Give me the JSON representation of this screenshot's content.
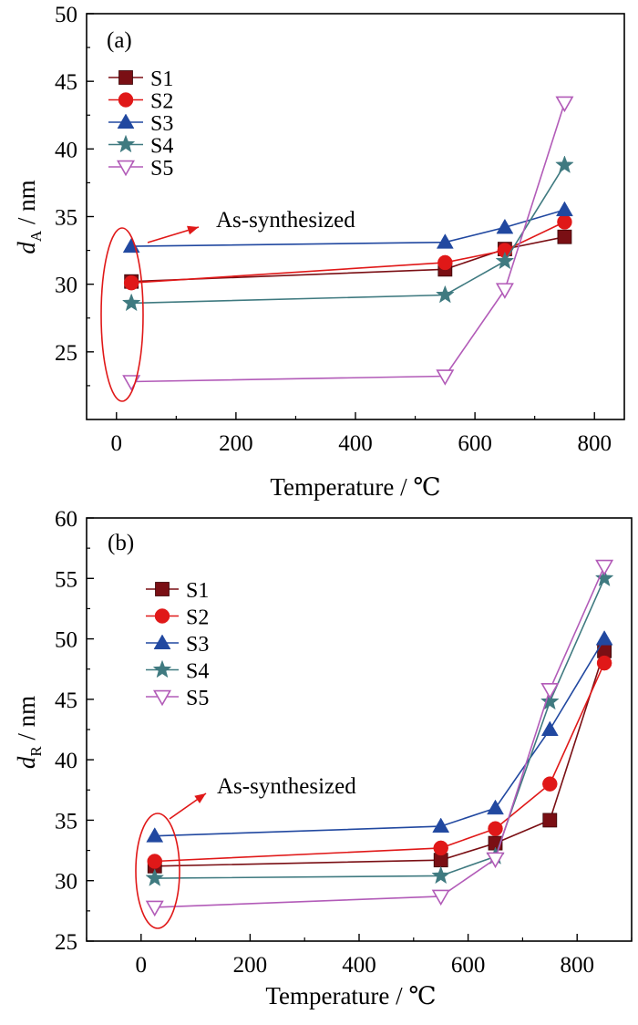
{
  "chart_data": [
    {
      "type": "line",
      "panel_label": "(a)",
      "xlabel": "Temperature / ℃",
      "ylabel_main": "d",
      "ylabel_sub": "A",
      "ylabel_unit": " / nm",
      "xlim": [
        -50,
        850
      ],
      "ylim": [
        20,
        50
      ],
      "xticks": [
        0,
        200,
        400,
        600,
        800
      ],
      "yticks": [
        25,
        30,
        35,
        40,
        45,
        50
      ],
      "legend_position": "top-left",
      "annotation": "As-synthesized",
      "series": [
        {
          "name": "S1",
          "marker": "square",
          "color": "#7a0f14",
          "x": [
            25,
            550,
            650,
            750
          ],
          "y": [
            30.2,
            31.1,
            32.6,
            33.5
          ]
        },
        {
          "name": "S2",
          "marker": "circle",
          "color": "#e01818",
          "x": [
            25,
            550,
            650,
            750
          ],
          "y": [
            30.1,
            31.6,
            32.5,
            34.6
          ]
        },
        {
          "name": "S3",
          "marker": "triangle-up",
          "color": "#2148a0",
          "x": [
            25,
            550,
            650,
            750
          ],
          "y": [
            32.8,
            33.1,
            34.2,
            35.5
          ]
        },
        {
          "name": "S4",
          "marker": "star",
          "color": "#3f7a80",
          "x": [
            25,
            550,
            650,
            750
          ],
          "y": [
            28.6,
            29.2,
            31.7,
            38.8
          ]
        },
        {
          "name": "S5",
          "marker": "triangle-down-open",
          "color": "#b25bb8",
          "x": [
            25,
            550,
            650,
            750
          ],
          "y": [
            22.8,
            23.2,
            29.6,
            43.4
          ]
        }
      ]
    },
    {
      "type": "line",
      "panel_label": "(b)",
      "xlabel": "Temperature / ℃",
      "ylabel_main": "d",
      "ylabel_sub": "R",
      "ylabel_unit": " / nm",
      "xlim": [
        -100,
        900
      ],
      "ylim": [
        25,
        60
      ],
      "xticks": [
        0,
        200,
        400,
        600,
        800
      ],
      "yticks": [
        25,
        30,
        35,
        40,
        45,
        50,
        55,
        60
      ],
      "legend_position": "top-left",
      "annotation": "As-synthesized",
      "series": [
        {
          "name": "S1",
          "marker": "square",
          "color": "#7a0f14",
          "x": [
            25,
            550,
            650,
            750,
            850
          ],
          "y": [
            31.2,
            31.7,
            33.1,
            35.0,
            49.0
          ]
        },
        {
          "name": "S2",
          "marker": "circle",
          "color": "#e01818",
          "x": [
            25,
            550,
            650,
            750,
            850
          ],
          "y": [
            31.6,
            32.7,
            34.3,
            38.0,
            48.0
          ]
        },
        {
          "name": "S3",
          "marker": "triangle-up",
          "color": "#2148a0",
          "x": [
            25,
            550,
            650,
            750,
            850
          ],
          "y": [
            33.7,
            34.5,
            36.0,
            42.5,
            50.0
          ]
        },
        {
          "name": "S4",
          "marker": "star",
          "color": "#3f7a80",
          "x": [
            25,
            550,
            650,
            750,
            850
          ],
          "y": [
            30.2,
            30.4,
            32.0,
            44.8,
            55.0
          ]
        },
        {
          "name": "S5",
          "marker": "triangle-down-open",
          "color": "#b25bb8",
          "x": [
            25,
            550,
            650,
            750,
            850
          ],
          "y": [
            27.8,
            28.7,
            31.8,
            45.8,
            56.0
          ]
        }
      ]
    }
  ]
}
